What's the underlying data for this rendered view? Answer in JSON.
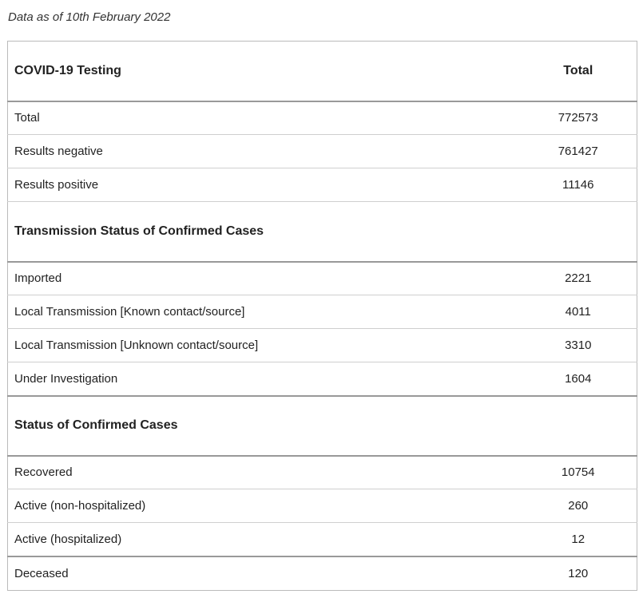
{
  "caption": "Data as of 10th February 2022",
  "sections": [
    {
      "title": "COVID-19 Testing",
      "column_label": "Total",
      "rows": [
        {
          "label": "Total",
          "value": "772573"
        },
        {
          "label": "Results negative",
          "value": "761427"
        },
        {
          "label": "Results positive",
          "value": "11146"
        }
      ]
    },
    {
      "title": "Transmission Status of Confirmed Cases",
      "column_label": "",
      "rows": [
        {
          "label": "Imported",
          "value": "2221"
        },
        {
          "label": "Local Transmission [Known contact/source]",
          "value": "4011"
        },
        {
          "label": "Local Transmission [Unknown contact/source]",
          "value": "3310"
        },
        {
          "label": "Under Investigation",
          "value": "1604"
        }
      ]
    },
    {
      "title": "Status of Confirmed Cases",
      "column_label": "",
      "rows": [
        {
          "label": "Recovered",
          "value": "10754"
        },
        {
          "label": "Active (non-hospitalized)",
          "value": "260"
        },
        {
          "label": "Active (hospitalized)",
          "value": "12"
        },
        {
          "label": "Deceased",
          "value": "120"
        }
      ]
    }
  ]
}
